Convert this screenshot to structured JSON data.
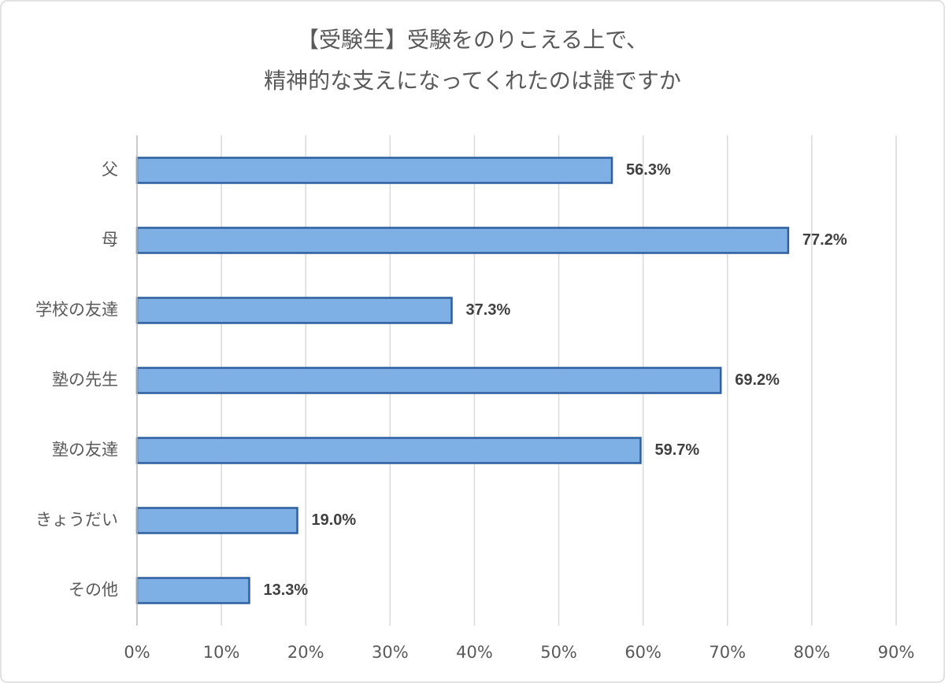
{
  "chart_data": {
    "type": "bar",
    "orientation": "horizontal",
    "title": [
      "【受験生】受験をのりこえる上で、",
      "精神的な支えになってくれたのは誰ですか"
    ],
    "categories": [
      "父",
      "母",
      "学校の友達",
      "塾の先生",
      "塾の友達",
      "きょうだい",
      "その他"
    ],
    "values": [
      56.3,
      77.2,
      37.3,
      69.2,
      59.7,
      19.0,
      13.3
    ],
    "value_labels": [
      "56.3%",
      "77.2%",
      "37.3%",
      "69.2%",
      "59.7%",
      "19.0%",
      "13.3%"
    ],
    "color": "#7eb0e6",
    "edge_color": "#2e5f9e",
    "xlim": [
      0,
      90
    ],
    "xticks": [
      {
        "value": 0,
        "label": "0%"
      },
      {
        "value": 10,
        "label": "10%"
      },
      {
        "value": 20,
        "label": "20%"
      },
      {
        "value": 30,
        "label": "30%"
      },
      {
        "value": 40,
        "label": "40%"
      },
      {
        "value": 50,
        "label": "50%"
      },
      {
        "value": 60,
        "label": "60%"
      },
      {
        "value": 70,
        "label": "70%"
      },
      {
        "value": 80,
        "label": "80%"
      },
      {
        "value": 90,
        "label": "90%"
      }
    ],
    "grid": true
  }
}
